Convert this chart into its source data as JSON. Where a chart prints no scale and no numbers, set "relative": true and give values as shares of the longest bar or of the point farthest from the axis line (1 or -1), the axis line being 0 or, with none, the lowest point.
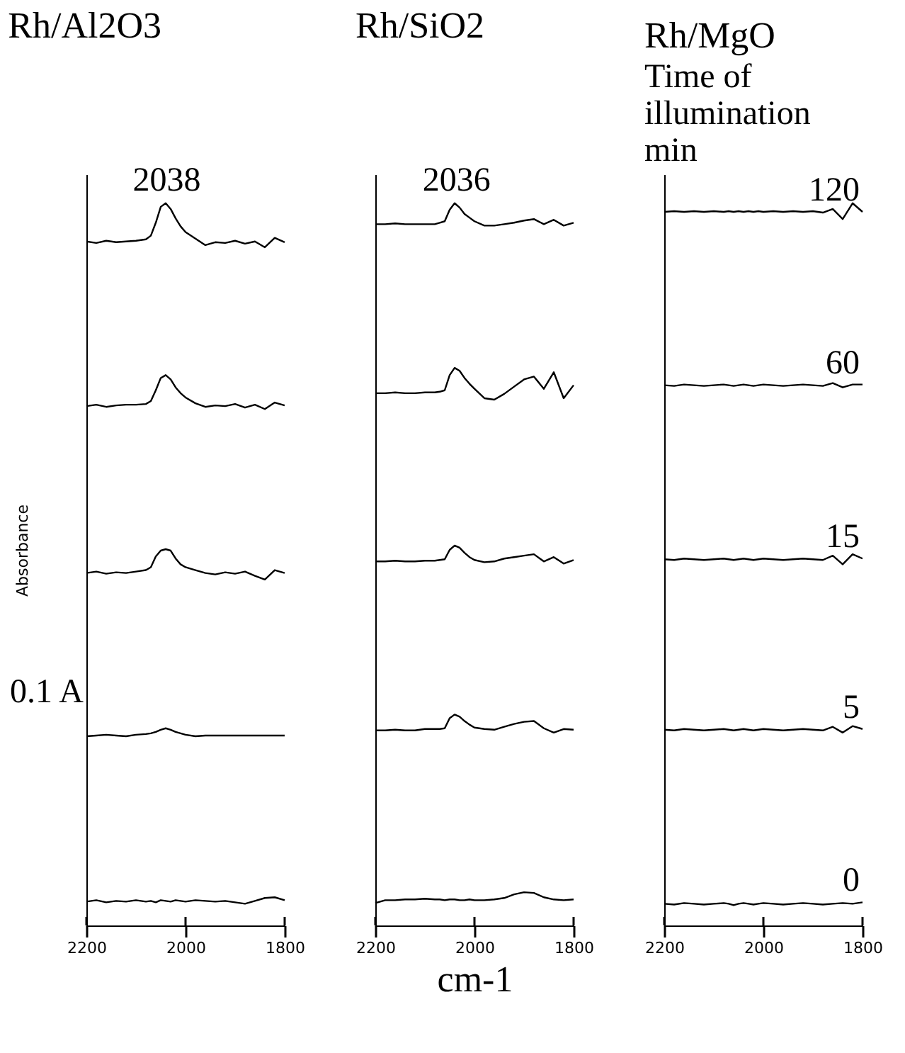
{
  "chart_data": [
    {
      "type": "line",
      "title": "Rh/Al2O3",
      "ylabel": "Absorbance",
      "relative": true,
      "line_style": "solid",
      "annotations": [
        {
          "text": "2038",
          "x": 2038,
          "y": 1.0
        },
        "0.1 A"
      ],
      "x": [
        2200,
        2180,
        2160,
        2140,
        2120,
        2100,
        2080,
        2070,
        2060,
        2050,
        2040,
        2030,
        2020,
        2010,
        2000,
        1980,
        1960,
        1940,
        1920,
        1900,
        1880,
        1860,
        1840,
        1820,
        1800
      ],
      "xlim": [
        2200,
        1800
      ],
      "xticks": [
        2200,
        2000,
        1800
      ],
      "series": [
        {
          "color": "#000000",
          "values": [
            0.947,
            0.945,
            0.948,
            0.946,
            0.947,
            0.948,
            0.95,
            0.955,
            0.973,
            0.995,
            1.0,
            0.992,
            0.979,
            0.968,
            0.96,
            0.951,
            0.942,
            0.946,
            0.945,
            0.948,
            0.944,
            0.947,
            0.939,
            0.952,
            0.946
          ]
        },
        {
          "color": "#000000",
          "values": [
            0.719,
            0.721,
            0.718,
            0.72,
            0.721,
            0.721,
            0.722,
            0.726,
            0.741,
            0.758,
            0.762,
            0.756,
            0.745,
            0.737,
            0.731,
            0.723,
            0.718,
            0.72,
            0.719,
            0.722,
            0.717,
            0.721,
            0.715,
            0.724,
            0.72
          ]
        },
        {
          "color": "#000000",
          "values": [
            0.488,
            0.49,
            0.487,
            0.489,
            0.488,
            0.49,
            0.492,
            0.496,
            0.511,
            0.519,
            0.521,
            0.519,
            0.508,
            0.5,
            0.496,
            0.492,
            0.488,
            0.486,
            0.489,
            0.487,
            0.49,
            0.484,
            0.479,
            0.492,
            0.488
          ]
        },
        {
          "color": "#000000",
          "values": [
            0.262,
            0.263,
            0.264,
            0.263,
            0.262,
            0.264,
            0.265,
            0.266,
            0.268,
            0.271,
            0.273,
            0.271,
            0.268,
            0.266,
            0.264,
            0.262,
            0.263,
            0.263,
            0.263,
            0.263,
            0.263,
            0.263,
            0.263,
            0.263,
            0.263
          ]
        },
        {
          "color": "#000000",
          "values": [
            0.033,
            0.035,
            0.032,
            0.034,
            0.033,
            0.035,
            0.033,
            0.034,
            0.032,
            0.035,
            0.034,
            0.033,
            0.035,
            0.034,
            0.033,
            0.035,
            0.034,
            0.033,
            0.034,
            0.032,
            0.03,
            0.034,
            0.038,
            0.039,
            0.035
          ]
        }
      ]
    },
    {
      "type": "line",
      "title": "Rh/SiO2",
      "xlabel": "cm-1",
      "relative": true,
      "line_style": "solid",
      "annotations": [
        {
          "text": "2036",
          "x": 2036,
          "y": 1.0
        }
      ],
      "x": [
        2200,
        2180,
        2160,
        2140,
        2120,
        2100,
        2080,
        2070,
        2060,
        2050,
        2040,
        2030,
        2020,
        2010,
        2000,
        1980,
        1960,
        1940,
        1920,
        1900,
        1880,
        1860,
        1840,
        1820,
        1800
      ],
      "xlim": [
        2200,
        1800
      ],
      "xticks": [
        2200,
        2000,
        1800
      ],
      "series": [
        {
          "color": "#000000",
          "values": [
            0.971,
            0.971,
            0.972,
            0.971,
            0.971,
            0.971,
            0.971,
            0.973,
            0.975,
            0.991,
            1.0,
            0.994,
            0.985,
            0.98,
            0.975,
            0.969,
            0.969,
            0.971,
            0.973,
            0.976,
            0.978,
            0.971,
            0.977,
            0.969,
            0.973
          ]
        },
        {
          "color": "#000000",
          "values": [
            0.737,
            0.737,
            0.738,
            0.737,
            0.737,
            0.738,
            0.738,
            0.739,
            0.741,
            0.762,
            0.772,
            0.768,
            0.758,
            0.75,
            0.743,
            0.73,
            0.728,
            0.736,
            0.746,
            0.756,
            0.76,
            0.743,
            0.766,
            0.73,
            0.748
          ]
        },
        {
          "color": "#000000",
          "values": [
            0.504,
            0.504,
            0.505,
            0.504,
            0.504,
            0.505,
            0.505,
            0.506,
            0.507,
            0.52,
            0.526,
            0.523,
            0.516,
            0.51,
            0.506,
            0.503,
            0.504,
            0.508,
            0.51,
            0.512,
            0.514,
            0.504,
            0.51,
            0.501,
            0.506
          ]
        },
        {
          "color": "#000000",
          "values": [
            0.27,
            0.27,
            0.271,
            0.27,
            0.27,
            0.272,
            0.272,
            0.272,
            0.273,
            0.287,
            0.292,
            0.289,
            0.283,
            0.278,
            0.274,
            0.272,
            0.271,
            0.275,
            0.279,
            0.282,
            0.283,
            0.273,
            0.267,
            0.272,
            0.271
          ]
        },
        {
          "color": "#000000",
          "values": [
            0.031,
            0.035,
            0.035,
            0.036,
            0.036,
            0.037,
            0.036,
            0.036,
            0.035,
            0.036,
            0.036,
            0.035,
            0.035,
            0.036,
            0.035,
            0.035,
            0.036,
            0.038,
            0.043,
            0.046,
            0.045,
            0.039,
            0.036,
            0.035,
            0.036
          ]
        }
      ]
    },
    {
      "type": "line",
      "title": "Rh/MgO",
      "legend_title": "Time of illumination min",
      "relative": true,
      "line_style": "solid",
      "x": [
        2200,
        2180,
        2160,
        2140,
        2120,
        2100,
        2080,
        2070,
        2060,
        2050,
        2040,
        2030,
        2020,
        2010,
        2000,
        1980,
        1960,
        1940,
        1920,
        1900,
        1880,
        1860,
        1840,
        1820,
        1800
      ],
      "xlim": [
        2200,
        1800
      ],
      "xticks": [
        2200,
        2000,
        1800
      ],
      "series": [
        {
          "name": "120",
          "color": "#000000",
          "values": [
            0.988,
            0.989,
            0.988,
            0.989,
            0.988,
            0.989,
            0.988,
            0.989,
            0.988,
            0.989,
            0.988,
            0.989,
            0.988,
            0.989,
            0.988,
            0.989,
            0.988,
            0.989,
            0.988,
            0.989,
            0.987,
            0.992,
            0.978,
            1.0,
            0.988
          ]
        },
        {
          "name": "60",
          "color": "#000000",
          "values": [
            0.748,
            0.747,
            0.749,
            0.748,
            0.747,
            0.748,
            0.749,
            0.748,
            0.747,
            0.748,
            0.749,
            0.748,
            0.747,
            0.748,
            0.749,
            0.748,
            0.747,
            0.748,
            0.749,
            0.748,
            0.747,
            0.751,
            0.745,
            0.749,
            0.749
          ]
        },
        {
          "name": "15",
          "color": "#000000",
          "values": [
            0.507,
            0.506,
            0.508,
            0.507,
            0.506,
            0.507,
            0.508,
            0.507,
            0.506,
            0.507,
            0.508,
            0.507,
            0.506,
            0.507,
            0.508,
            0.507,
            0.506,
            0.507,
            0.508,
            0.507,
            0.506,
            0.512,
            0.5,
            0.514,
            0.508
          ]
        },
        {
          "name": "5",
          "color": "#000000",
          "values": [
            0.271,
            0.27,
            0.272,
            0.271,
            0.27,
            0.271,
            0.272,
            0.271,
            0.27,
            0.271,
            0.272,
            0.271,
            0.27,
            0.271,
            0.272,
            0.271,
            0.27,
            0.271,
            0.272,
            0.271,
            0.27,
            0.275,
            0.267,
            0.276,
            0.272
          ]
        },
        {
          "name": "0",
          "color": "#000000",
          "values": [
            0.03,
            0.029,
            0.031,
            0.03,
            0.029,
            0.03,
            0.031,
            0.03,
            0.028,
            0.03,
            0.031,
            0.03,
            0.029,
            0.03,
            0.031,
            0.03,
            0.029,
            0.03,
            0.031,
            0.03,
            0.029,
            0.03,
            0.031,
            0.03,
            0.032
          ]
        }
      ]
    }
  ]
}
